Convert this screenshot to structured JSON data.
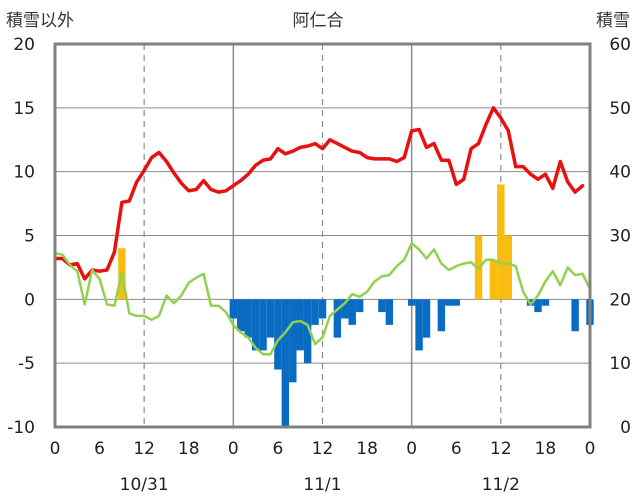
{
  "chart_data": {
    "type": "line",
    "title": "阿仁合",
    "left_axis_label": "積雪以外",
    "right_axis_label": "積雪",
    "left_ylim": [
      -10,
      20
    ],
    "right_ylim": [
      0,
      60
    ],
    "left_ticks": [
      "20",
      "15",
      "10",
      "5",
      "0",
      "-5",
      "-10"
    ],
    "right_ticks": [
      "60",
      "50",
      "40",
      "30",
      "20",
      "10",
      "0"
    ],
    "x_ticks": [
      "0",
      "6",
      "12",
      "18",
      "0",
      "6",
      "12",
      "18",
      "0",
      "6",
      "12",
      "18",
      "0"
    ],
    "x_tick_hours": [
      0,
      6,
      12,
      18,
      24,
      30,
      36,
      42,
      48,
      54,
      60,
      66,
      72
    ],
    "date_labels": [
      {
        "label": "10/31",
        "hour": 12
      },
      {
        "label": "11/1",
        "hour": 36
      },
      {
        "label": "11/2",
        "hour": 60
      }
    ],
    "xlim": [
      0,
      72
    ],
    "grid": {
      "solid_hours": [
        24,
        48
      ],
      "dashed_hours": [
        12,
        36,
        60
      ]
    },
    "colors": {
      "temperature": "#e8110f",
      "dewpoint": "#92d050",
      "precip_positive": "#f9bd10",
      "precip_negative": "#0a6bc2",
      "snow_depth": "#7030a0",
      "frame": "#808080"
    },
    "series": [
      {
        "kind": "line",
        "axis": "left",
        "color": "#e8110f",
        "points": [
          [
            0,
            3.2
          ],
          [
            1,
            3.2
          ],
          [
            2,
            2.7
          ],
          [
            3,
            2.8
          ],
          [
            4,
            1.6
          ],
          [
            5,
            2.3
          ],
          [
            6,
            2.2
          ],
          [
            7,
            2.3
          ],
          [
            8,
            3.7
          ],
          [
            9,
            7.6
          ],
          [
            10,
            7.7
          ],
          [
            11,
            9.2
          ],
          [
            12,
            10.1
          ],
          [
            13,
            11.1
          ],
          [
            14,
            11.5
          ],
          [
            15,
            10.8
          ],
          [
            16,
            9.9
          ],
          [
            17,
            9.1
          ],
          [
            18,
            8.5
          ],
          [
            19,
            8.6
          ],
          [
            20,
            9.3
          ],
          [
            21,
            8.6
          ],
          [
            22,
            8.4
          ],
          [
            23,
            8.5
          ],
          [
            24,
            8.9
          ],
          [
            25,
            9.3
          ],
          [
            26,
            9.8
          ],
          [
            27,
            10.5
          ],
          [
            28,
            10.9
          ],
          [
            29,
            11.0
          ],
          [
            30,
            11.8
          ],
          [
            31,
            11.4
          ],
          [
            32,
            11.6
          ],
          [
            33,
            11.9
          ],
          [
            34,
            12.0
          ],
          [
            35,
            12.2
          ],
          [
            36,
            11.8
          ],
          [
            37,
            12.5
          ],
          [
            38,
            12.2
          ],
          [
            39,
            11.9
          ],
          [
            40,
            11.6
          ],
          [
            41,
            11.5
          ],
          [
            42,
            11.1
          ],
          [
            43,
            11.0
          ],
          [
            44,
            11.0
          ],
          [
            45,
            11.0
          ],
          [
            46,
            10.8
          ],
          [
            47,
            11.1
          ],
          [
            48,
            13.2
          ],
          [
            49,
            13.3
          ],
          [
            50,
            11.9
          ],
          [
            51,
            12.2
          ],
          [
            52,
            10.9
          ],
          [
            53,
            10.9
          ],
          [
            54,
            9.0
          ],
          [
            55,
            9.4
          ],
          [
            56,
            11.8
          ],
          [
            57,
            12.2
          ],
          [
            58,
            13.7
          ],
          [
            59,
            15.0
          ],
          [
            60,
            14.2
          ],
          [
            61,
            13.2
          ],
          [
            62,
            10.4
          ],
          [
            63,
            10.4
          ],
          [
            64,
            9.8
          ],
          [
            65,
            9.4
          ],
          [
            66,
            9.8
          ],
          [
            67,
            8.7
          ],
          [
            68,
            10.8
          ],
          [
            69,
            9.2
          ],
          [
            70,
            8.4
          ],
          [
            71,
            8.9
          ]
        ]
      },
      {
        "kind": "line",
        "axis": "left",
        "color": "#92d050",
        "points": [
          [
            0,
            3.6
          ],
          [
            1,
            3.5
          ],
          [
            2,
            2.7
          ],
          [
            3,
            2.2
          ],
          [
            4,
            -0.4
          ],
          [
            5,
            2.3
          ],
          [
            6,
            1.6
          ],
          [
            7,
            -0.4
          ],
          [
            8,
            -0.5
          ],
          [
            9,
            2.1
          ],
          [
            10,
            -1.1
          ],
          [
            11,
            -1.3
          ],
          [
            12,
            -1.3
          ],
          [
            13,
            -1.6
          ],
          [
            14,
            -1.3
          ],
          [
            15,
            0.3
          ],
          [
            16,
            -0.3
          ],
          [
            17,
            0.3
          ],
          [
            18,
            1.3
          ],
          [
            19,
            1.7
          ],
          [
            20,
            2.0
          ],
          [
            21,
            -0.5
          ],
          [
            22,
            -0.5
          ],
          [
            23,
            -1.0
          ],
          [
            24,
            -2.0
          ],
          [
            25,
            -2.6
          ],
          [
            26,
            -3.0
          ],
          [
            27,
            -3.8
          ],
          [
            28,
            -4.3
          ],
          [
            29,
            -4.3
          ],
          [
            30,
            -3.2
          ],
          [
            31,
            -2.6
          ],
          [
            32,
            -1.8
          ],
          [
            33,
            -1.7
          ],
          [
            34,
            -2.0
          ],
          [
            35,
            -3.5
          ],
          [
            36,
            -3.0
          ],
          [
            37,
            -1.3
          ],
          [
            38,
            -0.8
          ],
          [
            39,
            -0.3
          ],
          [
            40,
            0.4
          ],
          [
            41,
            0.2
          ],
          [
            42,
            0.6
          ],
          [
            43,
            1.4
          ],
          [
            44,
            1.8
          ],
          [
            45,
            1.9
          ],
          [
            46,
            2.6
          ],
          [
            47,
            3.1
          ],
          [
            48,
            4.4
          ],
          [
            49,
            3.9
          ],
          [
            50,
            3.2
          ],
          [
            51,
            3.9
          ],
          [
            52,
            2.8
          ],
          [
            53,
            2.3
          ],
          [
            54,
            2.6
          ],
          [
            55,
            2.8
          ],
          [
            56,
            2.9
          ],
          [
            57,
            2.4
          ],
          [
            58,
            3.1
          ],
          [
            59,
            3.1
          ],
          [
            60,
            2.8
          ],
          [
            61,
            2.8
          ],
          [
            62,
            2.6
          ],
          [
            63,
            0.6
          ],
          [
            64,
            -0.4
          ],
          [
            65,
            0.3
          ],
          [
            66,
            1.4
          ],
          [
            67,
            2.2
          ],
          [
            68,
            1.1
          ],
          [
            69,
            2.5
          ],
          [
            70,
            1.9
          ],
          [
            71,
            2.0
          ],
          [
            72,
            0.8
          ]
        ]
      },
      {
        "kind": "bar",
        "axis": "left",
        "name": "",
        "bars": [
          {
            "hour": 9,
            "value": 4.0,
            "color": "#f9bd10"
          },
          {
            "hour": 24,
            "value": -1.5,
            "color": "#0a6bc2"
          },
          {
            "hour": 25,
            "value": -2.5,
            "color": "#0a6bc2"
          },
          {
            "hour": 26,
            "value": -3.0,
            "color": "#0a6bc2"
          },
          {
            "hour": 27,
            "value": -4.0,
            "color": "#0a6bc2"
          },
          {
            "hour": 28,
            "value": -4.0,
            "color": "#0a6bc2"
          },
          {
            "hour": 29,
            "value": -3.0,
            "color": "#0a6bc2"
          },
          {
            "hour": 30,
            "value": -5.5,
            "color": "#0a6bc2"
          },
          {
            "hour": 31,
            "value": -10.0,
            "color": "#0a6bc2"
          },
          {
            "hour": 32,
            "value": -6.5,
            "color": "#0a6bc2"
          },
          {
            "hour": 33,
            "value": -4.0,
            "color": "#0a6bc2"
          },
          {
            "hour": 34,
            "value": -5.0,
            "color": "#0a6bc2"
          },
          {
            "hour": 35,
            "value": -2.0,
            "color": "#0a6bc2"
          },
          {
            "hour": 36,
            "value": -1.5,
            "color": "#0a6bc2"
          },
          {
            "hour": 38,
            "value": -3.0,
            "color": "#0a6bc2"
          },
          {
            "hour": 39,
            "value": -1.5,
            "color": "#0a6bc2"
          },
          {
            "hour": 40,
            "value": -2.0,
            "color": "#0a6bc2"
          },
          {
            "hour": 41,
            "value": -1.0,
            "color": "#0a6bc2"
          },
          {
            "hour": 44,
            "value": -1.0,
            "color": "#0a6bc2"
          },
          {
            "hour": 45,
            "value": -2.0,
            "color": "#0a6bc2"
          },
          {
            "hour": 48,
            "value": -0.5,
            "color": "#0a6bc2"
          },
          {
            "hour": 49,
            "value": -4.0,
            "color": "#0a6bc2"
          },
          {
            "hour": 50,
            "value": -3.0,
            "color": "#0a6bc2"
          },
          {
            "hour": 52,
            "value": -2.5,
            "color": "#0a6bc2"
          },
          {
            "hour": 53,
            "value": -0.5,
            "color": "#0a6bc2"
          },
          {
            "hour": 54,
            "value": -0.5,
            "color": "#0a6bc2"
          },
          {
            "hour": 57,
            "value": 5.0,
            "color": "#f9bd10"
          },
          {
            "hour": 59,
            "value": 3.0,
            "color": "#f9bd10"
          },
          {
            "hour": 60,
            "value": 9.0,
            "color": "#f9bd10"
          },
          {
            "hour": 61,
            "value": 5.0,
            "color": "#f9bd10"
          },
          {
            "hour": 64,
            "value": -0.5,
            "color": "#0a6bc2"
          },
          {
            "hour": 65,
            "value": -1.0,
            "color": "#0a6bc2"
          },
          {
            "hour": 66,
            "value": -0.5,
            "color": "#0a6bc2"
          },
          {
            "hour": 70,
            "value": -2.5,
            "color": "#0a6bc2"
          },
          {
            "hour": 72,
            "value": -2.0,
            "color": "#0a6bc2"
          }
        ]
      },
      {
        "kind": "line",
        "axis": "right",
        "color": "#7030a0",
        "points": [
          [
            10,
            0
          ],
          [
            72,
            0
          ]
        ]
      }
    ]
  }
}
